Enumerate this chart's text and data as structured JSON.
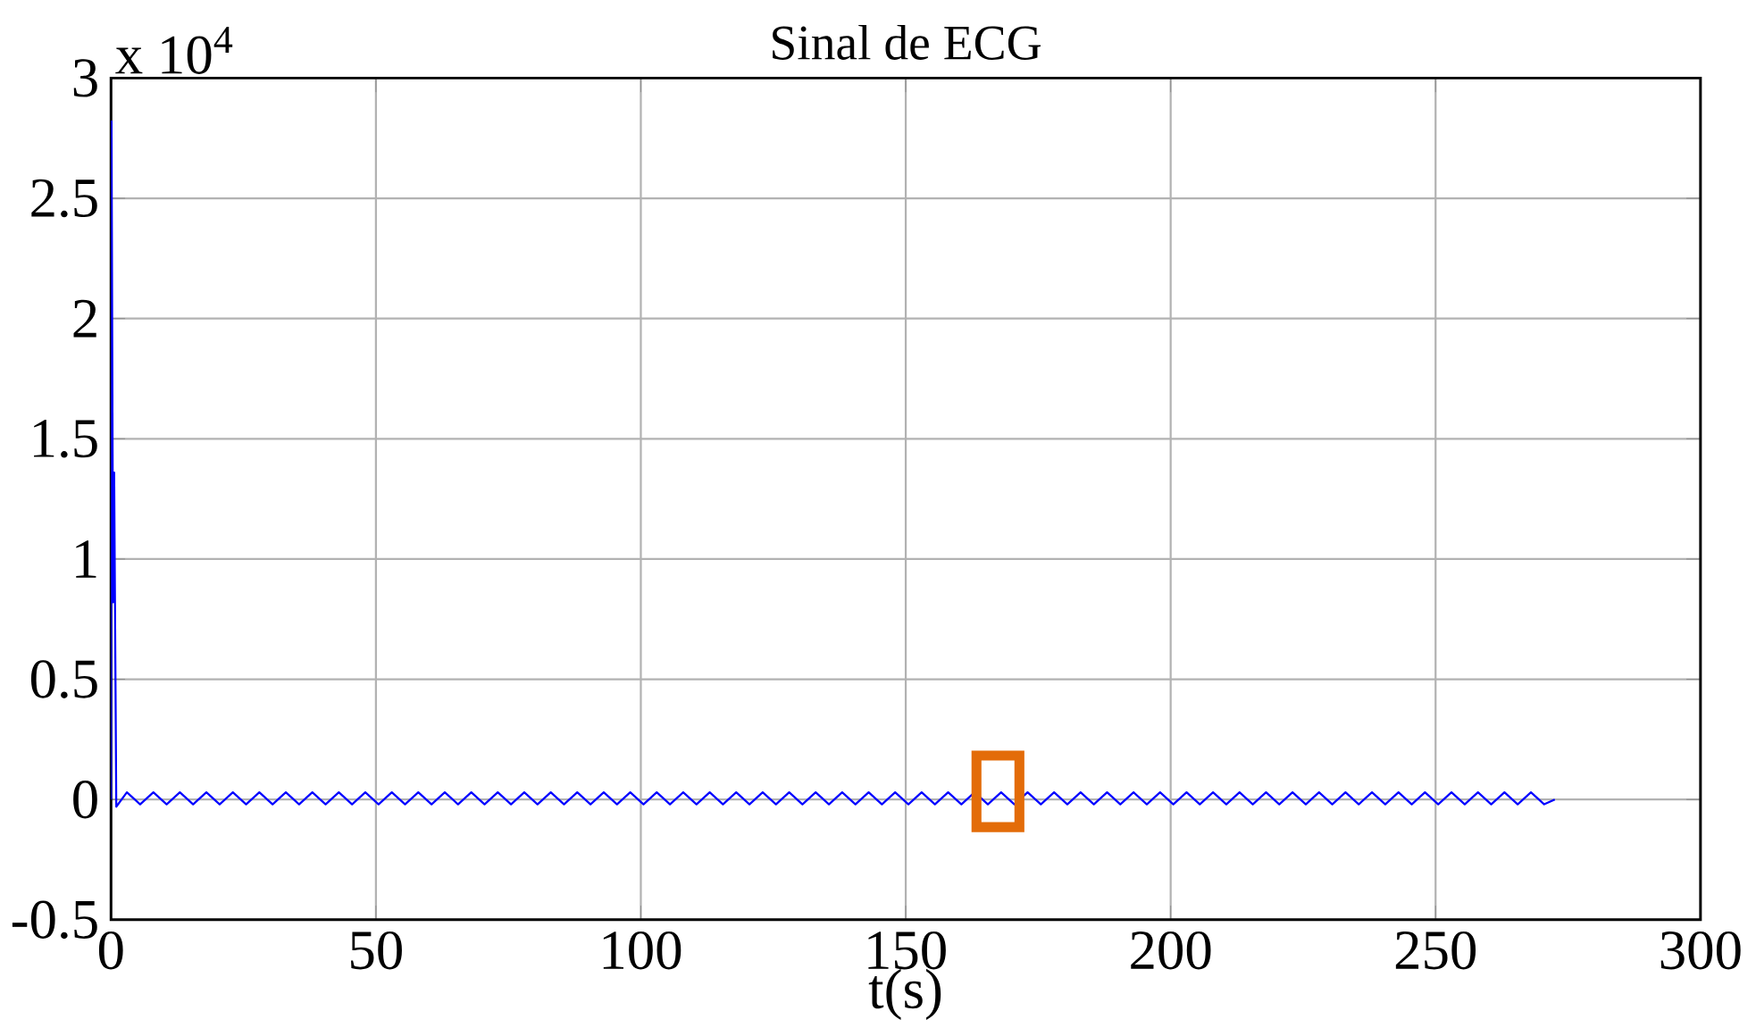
{
  "chart_data": {
    "type": "line",
    "title": "Sinal de ECG",
    "xlabel": "t(s)",
    "annotations": [
      "x 10$^{4}$"
    ],
    "xlim": [
      0,
      300
    ],
    "xticks": [
      0,
      50,
      100,
      150,
      200,
      250,
      300
    ],
    "ylim": [
      -0.5,
      3
    ],
    "yticks": [
      -0.5,
      0,
      0.5,
      1,
      1.5,
      2,
      2.5,
      3
    ],
    "grid": true,
    "series": [
      {
        "color": "#0000ff",
        "x": [
          0,
          0.1,
          0.4,
          0.6,
          1.0,
          3,
          5.5,
          8,
          10.5,
          13,
          15.5,
          18,
          20.5,
          23,
          25.5,
          28,
          30.5,
          33,
          35.5,
          38,
          40.5,
          43,
          45.5,
          48,
          50.5,
          53,
          55.5,
          58,
          60.5,
          63,
          65.5,
          68,
          70.5,
          73,
          75.5,
          78,
          80.5,
          83,
          85.5,
          88,
          90.5,
          93,
          95.5,
          98,
          100.5,
          103,
          105.5,
          108,
          110.5,
          113,
          115.5,
          118,
          120.5,
          123,
          125.5,
          128,
          130.5,
          133,
          135.5,
          138,
          140.5,
          143,
          145.5,
          148,
          150.5,
          153,
          155.5,
          158,
          160.5,
          163,
          165.5,
          168,
          170.5,
          173,
          175.5,
          178,
          180.5,
          183,
          185.5,
          188,
          190.5,
          193,
          195.5,
          198,
          200.5,
          203,
          205.5,
          208,
          210.5,
          213,
          215.5,
          218,
          220.5,
          223,
          225.5,
          228,
          230.5,
          233,
          235.5,
          238,
          240.5,
          243,
          245.5,
          248,
          250.5,
          253,
          255.5,
          258,
          260.5,
          263,
          265.5,
          268,
          270.5,
          272.5
        ],
        "values": [
          0,
          2.82,
          0.82,
          1.36,
          -0.03,
          0.03,
          -0.02,
          0.03,
          -0.02,
          0.03,
          -0.02,
          0.03,
          -0.02,
          0.03,
          -0.02,
          0.03,
          -0.02,
          0.03,
          -0.02,
          0.03,
          -0.02,
          0.03,
          -0.02,
          0.03,
          -0.02,
          0.03,
          -0.02,
          0.03,
          -0.02,
          0.03,
          -0.02,
          0.03,
          -0.02,
          0.03,
          -0.02,
          0.03,
          -0.02,
          0.03,
          -0.02,
          0.03,
          -0.02,
          0.03,
          -0.02,
          0.03,
          -0.02,
          0.03,
          -0.02,
          0.03,
          -0.02,
          0.03,
          -0.02,
          0.03,
          -0.02,
          0.03,
          -0.02,
          0.03,
          -0.02,
          0.03,
          -0.02,
          0.03,
          -0.02,
          0.03,
          -0.02,
          0.03,
          -0.02,
          0.03,
          -0.02,
          0.03,
          -0.02,
          0.03,
          -0.02,
          0.03,
          -0.02,
          0.03,
          -0.02,
          0.03,
          -0.02,
          0.03,
          -0.02,
          0.03,
          -0.02,
          0.03,
          -0.02,
          0.03,
          -0.02,
          0.03,
          -0.02,
          0.03,
          -0.02,
          0.03,
          -0.02,
          0.03,
          -0.02,
          0.03,
          -0.02,
          0.03,
          -0.02,
          0.03,
          -0.02,
          0.03,
          -0.02,
          0.03,
          -0.02,
          0.03,
          -0.02,
          0.03,
          -0.02,
          0.03,
          -0.02,
          0.03,
          -0.02,
          0.03,
          -0.02,
          0
        ]
      }
    ]
  }
}
